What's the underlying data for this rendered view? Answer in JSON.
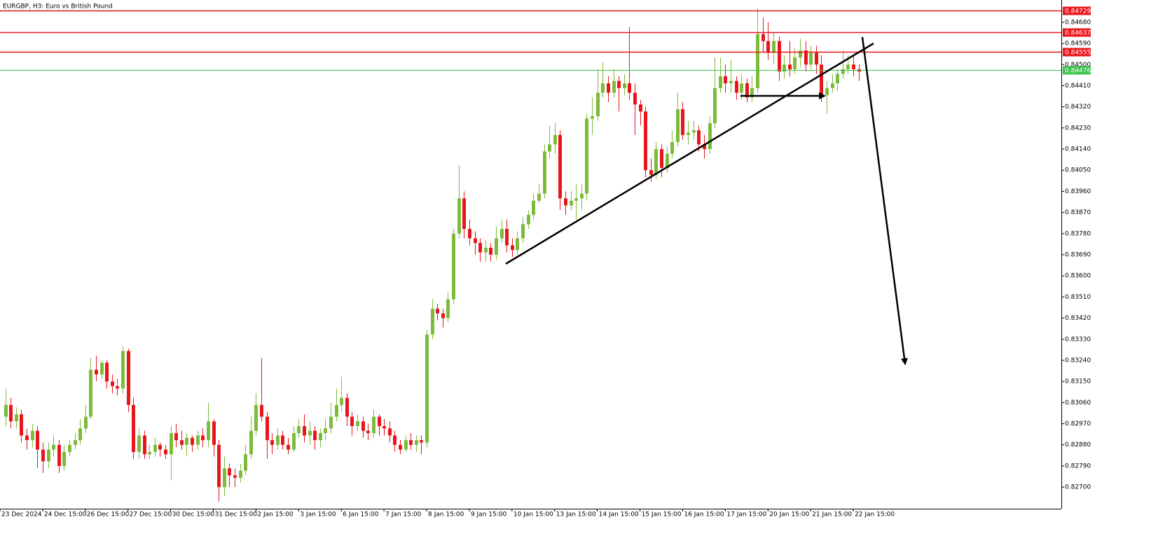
{
  "chart_data": {
    "type": "candlestick",
    "title": "EURGBP, H3:  Euro vs British Pound",
    "up_color": "#7cbb3a",
    "down_color": "#e8141b",
    "ylim": [
      0.82608,
      0.84775
    ],
    "xlim": [
      -1,
      198
    ],
    "yticks": [
      {
        "value": 0.8468,
        "label": "0.84680"
      },
      {
        "value": 0.8459,
        "label": "0.84590"
      },
      {
        "value": 0.845,
        "label": "0.84500"
      },
      {
        "value": 0.8441,
        "label": "0.84410"
      },
      {
        "value": 0.8432,
        "label": "0.84320"
      },
      {
        "value": 0.8423,
        "label": "0.84230"
      },
      {
        "value": 0.8414,
        "label": "0.84140"
      },
      {
        "value": 0.8405,
        "label": "0.84050"
      },
      {
        "value": 0.8396,
        "label": "0.83960"
      },
      {
        "value": 0.8387,
        "label": "0.83870"
      },
      {
        "value": 0.8378,
        "label": "0.83780"
      },
      {
        "value": 0.8369,
        "label": "0.83690"
      },
      {
        "value": 0.836,
        "label": "0.83600"
      },
      {
        "value": 0.8351,
        "label": "0.83510"
      },
      {
        "value": 0.8342,
        "label": "0.83420"
      },
      {
        "value": 0.8333,
        "label": "0.83330"
      },
      {
        "value": 0.8324,
        "label": "0.83240"
      },
      {
        "value": 0.8315,
        "label": "0.83150"
      },
      {
        "value": 0.8306,
        "label": "0.83060"
      },
      {
        "value": 0.8297,
        "label": "0.82970"
      },
      {
        "value": 0.8288,
        "label": "0.82880"
      },
      {
        "value": 0.8279,
        "label": "0.82790"
      },
      {
        "value": 0.827,
        "label": "0.82700"
      }
    ],
    "xticks": [
      {
        "value": -1,
        "label": "23 Dec 2024"
      },
      {
        "value": 7,
        "label": "24 Dec 15:00"
      },
      {
        "value": 15,
        "label": "26 Dec 15:00"
      },
      {
        "value": 23,
        "label": "27 Dec 15:00"
      },
      {
        "value": 31,
        "label": "30 Dec 15:00"
      },
      {
        "value": 39,
        "label": "31 Dec 15:00"
      },
      {
        "value": 47,
        "label": "2 Jan 15:00"
      },
      {
        "value": 55,
        "label": "3 Jan 15:00"
      },
      {
        "value": 63,
        "label": "6 Jan 15:00"
      },
      {
        "value": 71,
        "label": "7 Jan 15:00"
      },
      {
        "value": 79,
        "label": "8 Jan 15:00"
      },
      {
        "value": 87,
        "label": "9 Jan 15:00"
      },
      {
        "value": 95,
        "label": "10 Jan 15:00"
      },
      {
        "value": 103,
        "label": "13 Jan 15:00"
      },
      {
        "value": 111,
        "label": "14 Jan 15:00"
      },
      {
        "value": 119,
        "label": "15 Jan 15:00"
      },
      {
        "value": 127,
        "label": "16 Jan 15:00"
      },
      {
        "value": 135,
        "label": "17 Jan 15:00"
      },
      {
        "value": 143,
        "label": "20 Jan 15:00"
      },
      {
        "value": 151,
        "label": "21 Jan 15:00"
      },
      {
        "value": 159,
        "label": "22 Jan 15:00"
      }
    ],
    "levels": [
      {
        "value": 0.84729,
        "color": "#e8141b"
      },
      {
        "value": 0.84637,
        "color": "#e8141b"
      },
      {
        "value": 0.84555,
        "color": "#e8141b"
      },
      {
        "value": 0.84476,
        "color": "#3cc14a"
      }
    ],
    "candles": [
      [
        0.83,
        0.8312,
        0.8296,
        0.8305
      ],
      [
        0.8305,
        0.8308,
        0.8295,
        0.8298
      ],
      [
        0.8298,
        0.8304,
        0.8295,
        0.8301
      ],
      [
        0.8301,
        0.8303,
        0.8289,
        0.8292
      ],
      [
        0.8292,
        0.8295,
        0.8286,
        0.829
      ],
      [
        0.829,
        0.8297,
        0.8287,
        0.8294
      ],
      [
        0.8294,
        0.8296,
        0.8278,
        0.8286
      ],
      [
        0.8286,
        0.8289,
        0.8276,
        0.8281
      ],
      [
        0.8281,
        0.8289,
        0.8278,
        0.8286
      ],
      [
        0.8286,
        0.8292,
        0.8283,
        0.8288
      ],
      [
        0.8288,
        0.829,
        0.8276,
        0.8279
      ],
      [
        0.8279,
        0.8288,
        0.8277,
        0.8285
      ],
      [
        0.8285,
        0.829,
        0.8283,
        0.8288
      ],
      [
        0.8288,
        0.8293,
        0.8286,
        0.829
      ],
      [
        0.829,
        0.8299,
        0.8288,
        0.8295
      ],
      [
        0.8295,
        0.8305,
        0.8293,
        0.83
      ],
      [
        0.83,
        0.8325,
        0.8299,
        0.832
      ],
      [
        0.832,
        0.8326,
        0.8315,
        0.8318
      ],
      [
        0.8318,
        0.8324,
        0.8316,
        0.8323
      ],
      [
        0.8323,
        0.8324,
        0.8312,
        0.8315
      ],
      [
        0.8315,
        0.8318,
        0.831,
        0.8313
      ],
      [
        0.8313,
        0.8316,
        0.8309,
        0.8312
      ],
      [
        0.8312,
        0.833,
        0.831,
        0.8328
      ],
      [
        0.8328,
        0.8329,
        0.8302,
        0.8305
      ],
      [
        0.8305,
        0.8308,
        0.8282,
        0.8285
      ],
      [
        0.8285,
        0.8295,
        0.8282,
        0.8292
      ],
      [
        0.8292,
        0.8294,
        0.8282,
        0.8284
      ],
      [
        0.8284,
        0.8288,
        0.8282,
        0.8285
      ],
      [
        0.8285,
        0.8291,
        0.8283,
        0.8288
      ],
      [
        0.8288,
        0.8289,
        0.8283,
        0.8286
      ],
      [
        0.8286,
        0.8288,
        0.8282,
        0.8284
      ],
      [
        0.8284,
        0.8296,
        0.8273,
        0.8293
      ],
      [
        0.8293,
        0.8297,
        0.8287,
        0.829
      ],
      [
        0.829,
        0.8294,
        0.8286,
        0.8288
      ],
      [
        0.8288,
        0.8293,
        0.8283,
        0.8291
      ],
      [
        0.8291,
        0.8292,
        0.8285,
        0.8288
      ],
      [
        0.8288,
        0.8294,
        0.8286,
        0.8292
      ],
      [
        0.8292,
        0.8295,
        0.8287,
        0.829
      ],
      [
        0.829,
        0.8306,
        0.8287,
        0.8298
      ],
      [
        0.8298,
        0.8299,
        0.8283,
        0.8288
      ],
      [
        0.8288,
        0.829,
        0.8264,
        0.827
      ],
      [
        0.827,
        0.8283,
        0.8266,
        0.8278
      ],
      [
        0.8278,
        0.828,
        0.827,
        0.8275
      ],
      [
        0.8275,
        0.8278,
        0.827,
        0.8274
      ],
      [
        0.8274,
        0.828,
        0.8272,
        0.8277
      ],
      [
        0.8277,
        0.8288,
        0.8275,
        0.8284
      ],
      [
        0.8284,
        0.83,
        0.8282,
        0.8294
      ],
      [
        0.8294,
        0.831,
        0.8292,
        0.8305
      ],
      [
        0.8305,
        0.8325,
        0.8298,
        0.83
      ],
      [
        0.83,
        0.8302,
        0.8282,
        0.829
      ],
      [
        0.829,
        0.8293,
        0.8284,
        0.8288
      ],
      [
        0.8288,
        0.8295,
        0.8286,
        0.8292
      ],
      [
        0.8292,
        0.8294,
        0.8286,
        0.8288
      ],
      [
        0.8288,
        0.8291,
        0.8284,
        0.8286
      ],
      [
        0.8286,
        0.8296,
        0.8285,
        0.8293
      ],
      [
        0.8293,
        0.8299,
        0.8291,
        0.8296
      ],
      [
        0.8296,
        0.8301,
        0.8289,
        0.8292
      ],
      [
        0.8292,
        0.8298,
        0.8288,
        0.8294
      ],
      [
        0.8294,
        0.8296,
        0.8286,
        0.829
      ],
      [
        0.829,
        0.8295,
        0.8287,
        0.8293
      ],
      [
        0.8293,
        0.8299,
        0.829,
        0.8295
      ],
      [
        0.8295,
        0.8306,
        0.8293,
        0.83
      ],
      [
        0.83,
        0.8312,
        0.8298,
        0.8305
      ],
      [
        0.8305,
        0.8317,
        0.8302,
        0.8308
      ],
      [
        0.8308,
        0.831,
        0.8296,
        0.83
      ],
      [
        0.83,
        0.8302,
        0.8292,
        0.8296
      ],
      [
        0.8296,
        0.8301,
        0.8294,
        0.8298
      ],
      [
        0.8298,
        0.83,
        0.8291,
        0.8294
      ],
      [
        0.8294,
        0.8297,
        0.829,
        0.8293
      ],
      [
        0.8293,
        0.8303,
        0.8291,
        0.83
      ],
      [
        0.83,
        0.8301,
        0.8292,
        0.8296
      ],
      [
        0.8296,
        0.8299,
        0.8292,
        0.8295
      ],
      [
        0.8295,
        0.8298,
        0.8289,
        0.8292
      ],
      [
        0.8292,
        0.8294,
        0.8285,
        0.8288
      ],
      [
        0.8288,
        0.829,
        0.8284,
        0.8286
      ],
      [
        0.8286,
        0.8292,
        0.8285,
        0.829
      ],
      [
        0.829,
        0.8293,
        0.8286,
        0.8288
      ],
      [
        0.8288,
        0.8292,
        0.8285,
        0.829
      ],
      [
        0.829,
        0.8292,
        0.8284,
        0.8289
      ],
      [
        0.8289,
        0.8337,
        0.8287,
        0.8335
      ],
      [
        0.8335,
        0.835,
        0.8333,
        0.8346
      ],
      [
        0.8346,
        0.8348,
        0.8341,
        0.8344
      ],
      [
        0.8344,
        0.8346,
        0.8338,
        0.8342
      ],
      [
        0.8342,
        0.8353,
        0.834,
        0.835
      ],
      [
        0.835,
        0.838,
        0.8348,
        0.8378
      ],
      [
        0.8378,
        0.8407,
        0.8376,
        0.8393
      ],
      [
        0.8393,
        0.8396,
        0.8376,
        0.838
      ],
      [
        0.838,
        0.8384,
        0.8373,
        0.8376
      ],
      [
        0.8376,
        0.8379,
        0.8369,
        0.8374
      ],
      [
        0.8374,
        0.8376,
        0.8366,
        0.837
      ],
      [
        0.837,
        0.8375,
        0.8366,
        0.8372
      ],
      [
        0.8372,
        0.8374,
        0.8366,
        0.8369
      ],
      [
        0.8369,
        0.8381,
        0.8367,
        0.8376
      ],
      [
        0.8376,
        0.8384,
        0.8374,
        0.838
      ],
      [
        0.838,
        0.8384,
        0.837,
        0.8373
      ],
      [
        0.8373,
        0.8376,
        0.8368,
        0.8371
      ],
      [
        0.8371,
        0.8379,
        0.8369,
        0.8376
      ],
      [
        0.8376,
        0.8385,
        0.8374,
        0.8382
      ],
      [
        0.8382,
        0.8388,
        0.838,
        0.8386
      ],
      [
        0.8386,
        0.8395,
        0.8384,
        0.8392
      ],
      [
        0.8392,
        0.8399,
        0.8391,
        0.8395
      ],
      [
        0.8395,
        0.8416,
        0.8393,
        0.8413
      ],
      [
        0.8413,
        0.8424,
        0.841,
        0.8416
      ],
      [
        0.8416,
        0.8425,
        0.8412,
        0.842
      ],
      [
        0.842,
        0.8422,
        0.8388,
        0.8393
      ],
      [
        0.8393,
        0.8396,
        0.8386,
        0.839
      ],
      [
        0.839,
        0.8396,
        0.8388,
        0.8392
      ],
      [
        0.8392,
        0.8399,
        0.8384,
        0.8393
      ],
      [
        0.8393,
        0.8399,
        0.8388,
        0.8395
      ],
      [
        0.8395,
        0.8429,
        0.8392,
        0.8427
      ],
      [
        0.8427,
        0.8436,
        0.842,
        0.8428
      ],
      [
        0.8428,
        0.8448,
        0.8426,
        0.8438
      ],
      [
        0.8438,
        0.8451,
        0.8436,
        0.8442
      ],
      [
        0.8442,
        0.8445,
        0.8434,
        0.8438
      ],
      [
        0.8438,
        0.8448,
        0.8436,
        0.8443
      ],
      [
        0.8443,
        0.8445,
        0.843,
        0.844
      ],
      [
        0.844,
        0.8446,
        0.8437,
        0.8442
      ],
      [
        0.8442,
        0.8466,
        0.8435,
        0.8438
      ],
      [
        0.8438,
        0.8442,
        0.842,
        0.8433
      ],
      [
        0.8433,
        0.8435,
        0.8424,
        0.843
      ],
      [
        0.843,
        0.8432,
        0.8402,
        0.8405
      ],
      [
        0.8405,
        0.841,
        0.84,
        0.8403
      ],
      [
        0.8403,
        0.8417,
        0.8401,
        0.8414
      ],
      [
        0.8414,
        0.8416,
        0.8402,
        0.8406
      ],
      [
        0.8406,
        0.8415,
        0.8404,
        0.8412
      ],
      [
        0.8412,
        0.8422,
        0.841,
        0.8417
      ],
      [
        0.8417,
        0.8438,
        0.8415,
        0.8431
      ],
      [
        0.8431,
        0.8434,
        0.8418,
        0.842
      ],
      [
        0.842,
        0.8426,
        0.8416,
        0.8421
      ],
      [
        0.8421,
        0.8426,
        0.8418,
        0.8422
      ],
      [
        0.8422,
        0.8424,
        0.8413,
        0.8416
      ],
      [
        0.8416,
        0.842,
        0.841,
        0.8414
      ],
      [
        0.8414,
        0.8428,
        0.8412,
        0.8425
      ],
      [
        0.8425,
        0.8453,
        0.8423,
        0.844
      ],
      [
        0.844,
        0.8453,
        0.8438,
        0.8445
      ],
      [
        0.8445,
        0.845,
        0.8438,
        0.8442
      ],
      [
        0.8442,
        0.8452,
        0.8438,
        0.8443
      ],
      [
        0.8443,
        0.8445,
        0.8435,
        0.8438
      ],
      [
        0.8438,
        0.8446,
        0.8435,
        0.8442
      ],
      [
        0.8442,
        0.8444,
        0.8434,
        0.8436
      ],
      [
        0.8436,
        0.8445,
        0.8434,
        0.844
      ],
      [
        0.844,
        0.8474,
        0.8438,
        0.8463
      ],
      [
        0.8463,
        0.847,
        0.8455,
        0.846
      ],
      [
        0.846,
        0.8468,
        0.8452,
        0.8455
      ],
      [
        0.8455,
        0.8464,
        0.845,
        0.846
      ],
      [
        0.846,
        0.8462,
        0.8443,
        0.8447
      ],
      [
        0.8447,
        0.8454,
        0.8444,
        0.845
      ],
      [
        0.845,
        0.846,
        0.8445,
        0.8448
      ],
      [
        0.8448,
        0.8457,
        0.8446,
        0.8453
      ],
      [
        0.8453,
        0.8461,
        0.8449,
        0.8456
      ],
      [
        0.8456,
        0.846,
        0.8447,
        0.845
      ],
      [
        0.845,
        0.8458,
        0.8448,
        0.8455
      ],
      [
        0.8455,
        0.8458,
        0.8446,
        0.845
      ],
      [
        0.845,
        0.8454,
        0.8434,
        0.8437
      ],
      [
        0.8437,
        0.8443,
        0.8429,
        0.844
      ],
      [
        0.844,
        0.8446,
        0.8438,
        0.8442
      ],
      [
        0.8442,
        0.8448,
        0.8439,
        0.8446
      ],
      [
        0.8446,
        0.8456,
        0.8444,
        0.8448
      ],
      [
        0.8448,
        0.8454,
        0.8446,
        0.845
      ],
      [
        0.845,
        0.8454,
        0.8445,
        0.8448
      ],
      [
        0.8448,
        0.845,
        0.8443,
        0.8447
      ]
    ]
  }
}
